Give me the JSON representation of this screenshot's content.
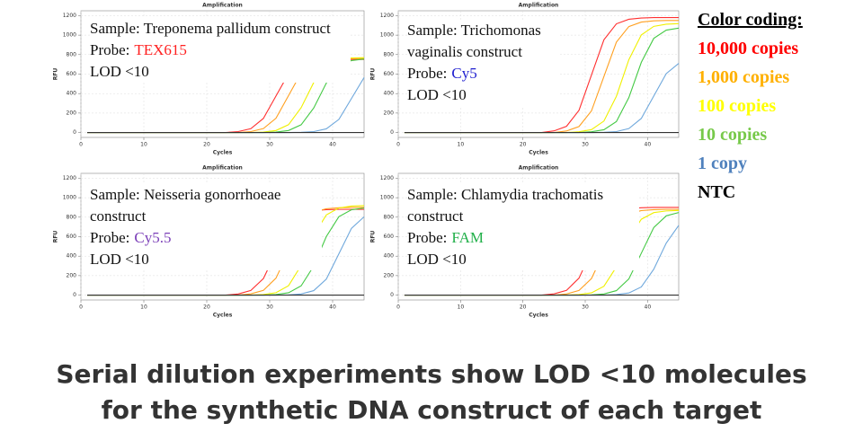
{
  "chart_data": [
    {
      "type": "line",
      "title": "Amplification",
      "x_label": "Cycles",
      "y_label": "RFU",
      "xlim": [
        0,
        45
      ],
      "xticks": [
        0,
        10,
        20,
        30,
        40
      ],
      "ylim": [
        -50,
        1250
      ],
      "yticks": [
        0,
        200,
        400,
        600,
        800,
        1000,
        1200
      ],
      "grid": true,
      "annotation": {
        "sample": "Sample: Treponema pallidum construct",
        "probe_label": "Probe:",
        "probe": "TEX615",
        "probe_color": "#ff2020",
        "lod": "LOD <10"
      },
      "x": [
        1,
        3,
        5,
        7,
        9,
        11,
        13,
        15,
        17,
        19,
        21,
        23,
        25,
        27,
        29,
        31,
        33,
        35,
        37,
        39,
        41,
        43,
        45
      ],
      "series": [
        {
          "color": "#ff3030",
          "values": [
            0,
            0,
            0,
            0,
            0,
            0,
            0,
            0,
            0,
            0,
            0,
            0,
            10,
            40,
            145,
            375,
            605,
            710,
            740,
            748,
            750,
            750,
            750
          ]
        },
        {
          "color": "#ffa020",
          "values": [
            0,
            0,
            0,
            0,
            0,
            0,
            0,
            0,
            0,
            0,
            0,
            0,
            0,
            10,
            41,
            147,
            380,
            613,
            719,
            749,
            758,
            760,
            760
          ]
        },
        {
          "color": "#f0f000",
          "values": [
            0,
            0,
            0,
            0,
            0,
            0,
            0,
            0,
            0,
            0,
            0,
            0,
            0,
            0,
            5,
            21,
            81,
            256,
            514,
            689,
            749,
            765,
            769
          ]
        },
        {
          "color": "#44c944",
          "values": [
            0,
            0,
            0,
            0,
            0,
            0,
            0,
            0,
            0,
            0,
            0,
            0,
            0,
            0,
            0,
            5,
            21,
            80,
            252,
            508,
            680,
            739,
            755
          ]
        },
        {
          "color": "#6fa8dc",
          "values": [
            0,
            0,
            0,
            0,
            0,
            0,
            0,
            0,
            0,
            0,
            0,
            0,
            0,
            0,
            0,
            0,
            0,
            2,
            10,
            38,
            135,
            350,
            565
          ]
        },
        {
          "color": "#333333",
          "values": [
            0,
            0,
            0,
            0,
            0,
            0,
            0,
            0,
            0,
            0,
            0,
            0,
            0,
            0,
            0,
            0,
            0,
            0,
            0,
            0,
            0,
            0,
            0
          ]
        }
      ]
    },
    {
      "type": "line",
      "title": "Amplification",
      "x_label": "Cycles",
      "y_label": "RFU",
      "xlim": [
        0,
        45
      ],
      "xticks": [
        0,
        10,
        20,
        30,
        40
      ],
      "ylim": [
        -50,
        1250
      ],
      "yticks": [
        0,
        200,
        400,
        600,
        800,
        1000,
        1200
      ],
      "grid": true,
      "annotation": {
        "sample": "Sample: Trichomonas vaginalis construct",
        "probe_label": "Probe:",
        "probe": "Cy5",
        "probe_color": "#2020d0",
        "lod": "LOD <10"
      },
      "x": [
        1,
        3,
        5,
        7,
        9,
        11,
        13,
        15,
        17,
        19,
        21,
        23,
        25,
        27,
        29,
        31,
        33,
        35,
        37,
        39,
        41,
        43,
        45
      ],
      "series": [
        {
          "color": "#ff3030",
          "values": [
            0,
            0,
            0,
            0,
            0,
            0,
            0,
            0,
            0,
            0,
            0,
            0,
            17,
            64,
            228,
            590,
            952,
            1116,
            1163,
            1176,
            1180,
            1180,
            1180
          ]
        },
        {
          "color": "#ffa020",
          "values": [
            0,
            0,
            0,
            0,
            0,
            0,
            0,
            0,
            0,
            0,
            0,
            0,
            0,
            16,
            62,
            222,
            575,
            928,
            1088,
            1134,
            1147,
            1150,
            1150
          ]
        },
        {
          "color": "#f0f000",
          "values": [
            0,
            0,
            0,
            0,
            0,
            0,
            0,
            0,
            0,
            0,
            0,
            0,
            0,
            0,
            8,
            30,
            118,
            372,
            748,
            1002,
            1090,
            1112,
            1118
          ]
        },
        {
          "color": "#44c944",
          "values": [
            0,
            0,
            0,
            0,
            0,
            0,
            0,
            0,
            0,
            0,
            0,
            0,
            0,
            0,
            0,
            8,
            29,
            113,
            359,
            721,
            967,
            1051,
            1072
          ]
        },
        {
          "color": "#6fa8dc",
          "values": [
            0,
            0,
            0,
            0,
            0,
            0,
            0,
            0,
            0,
            0,
            0,
            0,
            0,
            0,
            0,
            0,
            2,
            10,
            41,
            145,
            375,
            605,
            710
          ]
        },
        {
          "color": "#333333",
          "values": [
            0,
            0,
            0,
            0,
            0,
            0,
            0,
            0,
            0,
            0,
            0,
            0,
            0,
            0,
            0,
            0,
            0,
            0,
            0,
            0,
            0,
            0,
            0
          ]
        }
      ]
    },
    {
      "type": "line",
      "title": "Amplification",
      "x_label": "Cycles",
      "y_label": "RFU",
      "xlim": [
        0,
        45
      ],
      "xticks": [
        0,
        10,
        20,
        30,
        40
      ],
      "ylim": [
        -50,
        1250
      ],
      "yticks": [
        0,
        200,
        400,
        600,
        800,
        1000,
        1200
      ],
      "grid": true,
      "annotation": {
        "sample": "Sample: Neisseria gonorrhoeae construct",
        "probe_label": "Probe:",
        "probe": "Cy5.5",
        "probe_color": "#7b3fb8",
        "lod": "LOD <10"
      },
      "x": [
        1,
        3,
        5,
        7,
        9,
        11,
        13,
        15,
        17,
        19,
        21,
        23,
        25,
        27,
        29,
        31,
        33,
        35,
        37,
        39,
        41,
        43,
        45
      ],
      "series": [
        {
          "color": "#ff3030",
          "values": [
            0,
            0,
            0,
            0,
            0,
            0,
            0,
            0,
            0,
            0,
            0,
            0,
            12,
            48,
            170,
            440,
            710,
            832,
            868,
            877,
            880,
            880,
            880
          ]
        },
        {
          "color": "#ffa020",
          "values": [
            0,
            0,
            0,
            0,
            0,
            0,
            0,
            0,
            0,
            0,
            0,
            0,
            0,
            13,
            49,
            174,
            450,
            726,
            851,
            887,
            897,
            900,
            900
          ]
        },
        {
          "color": "#f0f000",
          "values": [
            0,
            0,
            0,
            0,
            0,
            0,
            0,
            0,
            0,
            0,
            0,
            0,
            0,
            0,
            6,
            25,
            97,
            305,
            615,
            823,
            895,
            914,
            919
          ]
        },
        {
          "color": "#44c944",
          "values": [
            0,
            0,
            0,
            0,
            0,
            0,
            0,
            0,
            0,
            0,
            0,
            0,
            0,
            0,
            0,
            6,
            24,
            95,
            299,
            601,
            806,
            876,
            894
          ]
        },
        {
          "color": "#6fa8dc",
          "values": [
            0,
            0,
            0,
            0,
            0,
            0,
            0,
            0,
            0,
            0,
            0,
            0,
            0,
            0,
            0,
            0,
            3,
            12,
            46,
            164,
            425,
            686,
            804
          ]
        },
        {
          "color": "#333333",
          "values": [
            0,
            0,
            0,
            0,
            0,
            0,
            0,
            0,
            0,
            0,
            0,
            0,
            0,
            0,
            0,
            0,
            0,
            0,
            0,
            0,
            0,
            0,
            0
          ]
        }
      ]
    },
    {
      "type": "line",
      "title": "Amplification",
      "x_label": "Cycles",
      "y_label": "RFU",
      "xlim": [
        0,
        45
      ],
      "xticks": [
        0,
        10,
        20,
        30,
        40
      ],
      "ylim": [
        -50,
        1250
      ],
      "yticks": [
        0,
        200,
        400,
        600,
        800,
        1000,
        1200
      ],
      "grid": true,
      "annotation": {
        "sample": "Sample: Chlamydia trachomatis construct",
        "probe_label": "Probe:",
        "probe": "FAM",
        "probe_color": "#22b04a",
        "lod": "LOD <10"
      },
      "x": [
        1,
        3,
        5,
        7,
        9,
        11,
        13,
        15,
        17,
        19,
        21,
        23,
        25,
        27,
        29,
        31,
        33,
        35,
        37,
        39,
        41,
        43,
        45
      ],
      "series": [
        {
          "color": "#ff3030",
          "values": [
            0,
            0,
            0,
            0,
            0,
            0,
            0,
            0,
            0,
            0,
            0,
            0,
            13,
            49,
            174,
            450,
            726,
            852,
            887,
            897,
            900,
            900,
            900
          ]
        },
        {
          "color": "#ffa020",
          "values": [
            0,
            0,
            0,
            0,
            0,
            0,
            0,
            0,
            0,
            0,
            0,
            0,
            0,
            12,
            48,
            170,
            440,
            710,
            832,
            868,
            877,
            880,
            880
          ]
        },
        {
          "color": "#f0f000",
          "values": [
            0,
            0,
            0,
            0,
            0,
            0,
            0,
            0,
            0,
            0,
            0,
            0,
            0,
            0,
            6,
            23,
            91,
            289,
            581,
            779,
            847,
            864,
            869
          ]
        },
        {
          "color": "#44c944",
          "values": [
            0,
            0,
            0,
            0,
            0,
            0,
            0,
            0,
            0,
            0,
            0,
            0,
            0,
            0,
            0,
            3,
            12,
            46,
            166,
            430,
            694,
            814,
            848
          ]
        },
        {
          "color": "#6fa8dc",
          "values": [
            0,
            0,
            0,
            0,
            0,
            0,
            0,
            0,
            0,
            0,
            0,
            0,
            0,
            0,
            0,
            0,
            0,
            6,
            22,
            84,
            266,
            534,
            716
          ]
        },
        {
          "color": "#333333",
          "values": [
            0,
            0,
            0,
            0,
            0,
            0,
            0,
            0,
            0,
            0,
            0,
            0,
            0,
            0,
            0,
            0,
            0,
            0,
            0,
            0,
            0,
            0,
            0
          ]
        }
      ]
    }
  ],
  "color_coding": {
    "title": "Color coding:",
    "items": [
      {
        "label": "10,000 copies",
        "color": "#ff0000"
      },
      {
        "label": "1,000 copies",
        "color": "#ffb000"
      },
      {
        "label": "100 copies",
        "color": "#ffff00"
      },
      {
        "label": "10 copies",
        "color": "#77c94a"
      },
      {
        "label": "1 copy",
        "color": "#4f81bd"
      },
      {
        "label": "NTC",
        "color": "#000000"
      }
    ]
  },
  "caption": [
    "Serial dilution experiments show LOD <10 molecules",
    "for the synthetic DNA construct of each target"
  ]
}
